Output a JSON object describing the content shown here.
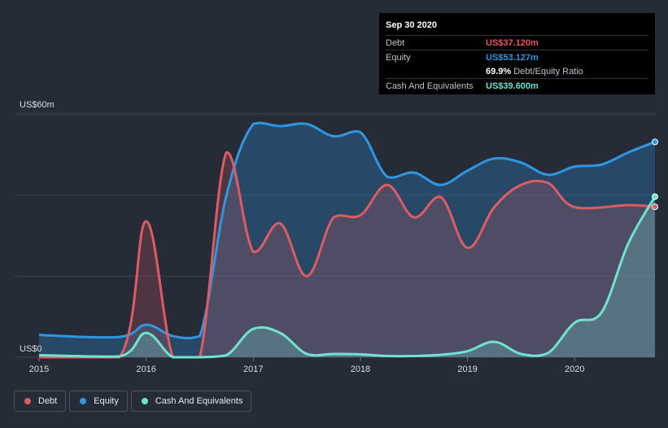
{
  "tooltip": {
    "date": "Sep 30 2020",
    "debt_label": "Debt",
    "debt_value": "US$37.120m",
    "equity_label": "Equity",
    "equity_value": "US$53.127m",
    "ratio_value": "69.9%",
    "ratio_label": "Debt/Equity Ratio",
    "cash_label": "Cash And Equivalents",
    "cash_value": "US$39.600m"
  },
  "legend": [
    {
      "label": "Debt",
      "color": "#e05a62"
    },
    {
      "label": "Equity",
      "color": "#2f97e2"
    },
    {
      "label": "Cash And Equivalents",
      "color": "#6fe3cf"
    }
  ],
  "chart_data": {
    "type": "area",
    "y_axis_labels": {
      "top": "US$60m",
      "bottom": "US$0"
    },
    "ylim": [
      0,
      60
    ],
    "xlim": [
      2015.0,
      2020.75
    ],
    "x_ticks": [
      "2015",
      "2016",
      "2017",
      "2018",
      "2019",
      "2020"
    ],
    "grid": true,
    "colors": {
      "debt": "#e05a62",
      "equity": "#2f97e2",
      "cash": "#6fe3cf"
    },
    "series": [
      {
        "name": "Debt",
        "key": "debt",
        "points": [
          [
            2015.0,
            0
          ],
          [
            2015.75,
            0
          ],
          [
            2016.0,
            33.5
          ],
          [
            2016.25,
            0
          ],
          [
            2016.5,
            0
          ],
          [
            2016.75,
            50.5
          ],
          [
            2017.0,
            26
          ],
          [
            2017.25,
            33
          ],
          [
            2017.5,
            20
          ],
          [
            2017.75,
            34.5
          ],
          [
            2018.0,
            35
          ],
          [
            2018.25,
            42.5
          ],
          [
            2018.5,
            34.5
          ],
          [
            2018.75,
            39.5
          ],
          [
            2019.0,
            27
          ],
          [
            2019.25,
            37
          ],
          [
            2019.5,
            42.5
          ],
          [
            2019.75,
            43
          ],
          [
            2020.0,
            37
          ],
          [
            2020.5,
            37.5
          ],
          [
            2020.75,
            37.1
          ]
        ]
      },
      {
        "name": "Equity",
        "key": "equity",
        "points": [
          [
            2015.0,
            5.5
          ],
          [
            2015.75,
            5
          ],
          [
            2016.0,
            8
          ],
          [
            2016.25,
            5.2
          ],
          [
            2016.5,
            5.2
          ],
          [
            2016.75,
            40
          ],
          [
            2017.0,
            57.5
          ],
          [
            2017.25,
            57
          ],
          [
            2017.5,
            57.5
          ],
          [
            2017.75,
            54.5
          ],
          [
            2018.0,
            55.5
          ],
          [
            2018.25,
            44.5
          ],
          [
            2018.5,
            45.5
          ],
          [
            2018.75,
            42.5
          ],
          [
            2019.0,
            46
          ],
          [
            2019.25,
            49
          ],
          [
            2019.5,
            48
          ],
          [
            2019.75,
            45
          ],
          [
            2020.0,
            47
          ],
          [
            2020.25,
            47.5
          ],
          [
            2020.5,
            50.5
          ],
          [
            2020.75,
            53.1
          ]
        ]
      },
      {
        "name": "Cash And Equivalents",
        "key": "cash",
        "points": [
          [
            2015.0,
            0.5
          ],
          [
            2015.75,
            0.2
          ],
          [
            2016.0,
            6
          ],
          [
            2016.25,
            0
          ],
          [
            2016.5,
            0
          ],
          [
            2016.75,
            0.5
          ],
          [
            2017.0,
            7
          ],
          [
            2017.25,
            6
          ],
          [
            2017.5,
            0.8
          ],
          [
            2017.75,
            0.8
          ],
          [
            2018.0,
            0.7
          ],
          [
            2018.25,
            0.3
          ],
          [
            2018.5,
            0.3
          ],
          [
            2018.75,
            0.6
          ],
          [
            2019.0,
            1.5
          ],
          [
            2019.25,
            3.8
          ],
          [
            2019.5,
            0.8
          ],
          [
            2019.75,
            1
          ],
          [
            2020.0,
            8.5
          ],
          [
            2020.25,
            11
          ],
          [
            2020.5,
            28
          ],
          [
            2020.75,
            39.6
          ]
        ]
      }
    ]
  }
}
